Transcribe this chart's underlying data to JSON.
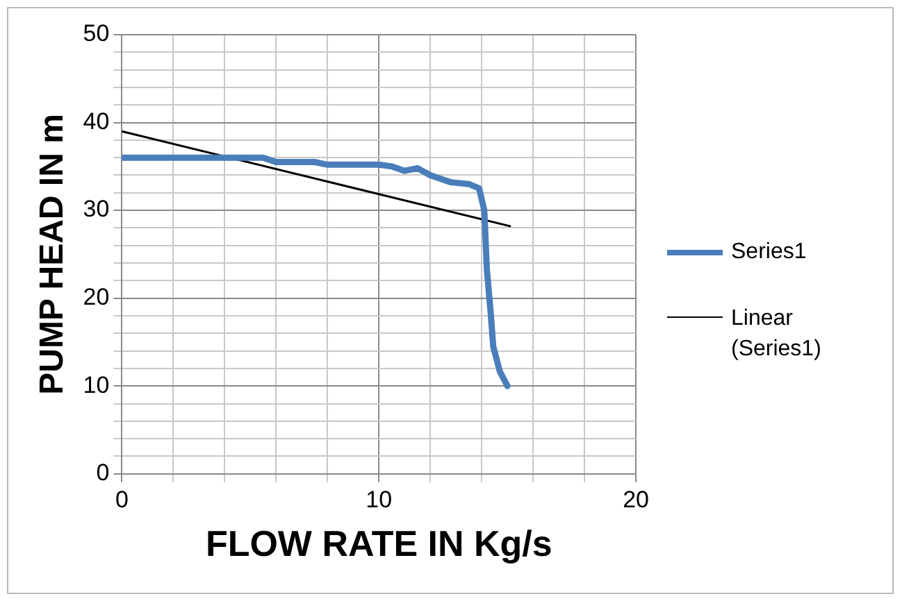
{
  "chart_data": {
    "type": "line",
    "xlabel": "FLOW RATE IN Kg/s",
    "ylabel": "PUMP HEAD IN m",
    "xlim": [
      0,
      20
    ],
    "ylim": [
      0,
      50
    ],
    "xticks": [
      0,
      {
        "value": 2,
        "label": null
      },
      {
        "value": 4,
        "label": null
      },
      {
        "value": 6,
        "label": null
      },
      {
        "value": 8,
        "label": null
      },
      10,
      {
        "value": 12,
        "label": null
      },
      {
        "value": 14,
        "label": null
      },
      {
        "value": 16,
        "label": null
      },
      {
        "value": 18,
        "label": null
      },
      20
    ],
    "yticks": [
      0,
      {
        "value": 2,
        "label": null
      },
      {
        "value": 4,
        "label": null
      },
      {
        "value": 6,
        "label": null
      },
      {
        "value": 8,
        "label": null
      },
      10,
      {
        "value": 12,
        "label": null
      },
      {
        "value": 14,
        "label": null
      },
      {
        "value": 16,
        "label": null
      },
      {
        "value": 18,
        "label": null
      },
      20,
      {
        "value": 22,
        "label": null
      },
      {
        "value": 24,
        "label": null
      },
      {
        "value": 26,
        "label": null
      },
      {
        "value": 28,
        "label": null
      },
      30,
      {
        "value": 32,
        "label": null
      },
      {
        "value": 34,
        "label": null
      },
      {
        "value": 36,
        "label": null
      },
      {
        "value": 38,
        "label": null
      },
      40,
      {
        "value": 42,
        "label": null
      },
      {
        "value": 44,
        "label": null
      },
      {
        "value": 46,
        "label": null
      },
      {
        "value": 48,
        "label": null
      },
      50
    ],
    "grid": true,
    "legend": "right",
    "marker": "none",
    "line_style": "solid",
    "series": [
      {
        "name": "Series1",
        "color": "#4a7ebb",
        "x": [
          0,
          5.5,
          6,
          7.5,
          8,
          10,
          10.5,
          11,
          11.5,
          12,
          12.8,
          13.5,
          13.9,
          14.1,
          14.2,
          14.35,
          14.45,
          14.7,
          15
        ],
        "values": [
          36,
          36,
          35.5,
          35.5,
          35.2,
          35.2,
          35,
          34.5,
          34.8,
          34,
          33.2,
          33,
          32.5,
          30,
          23.3,
          18.3,
          14.5,
          11.7,
          10
        ]
      },
      {
        "name": "Linear (Series1)",
        "color": "#000000",
        "x": [
          0,
          15.1
        ],
        "values": [
          39,
          28.2
        ]
      }
    ]
  }
}
